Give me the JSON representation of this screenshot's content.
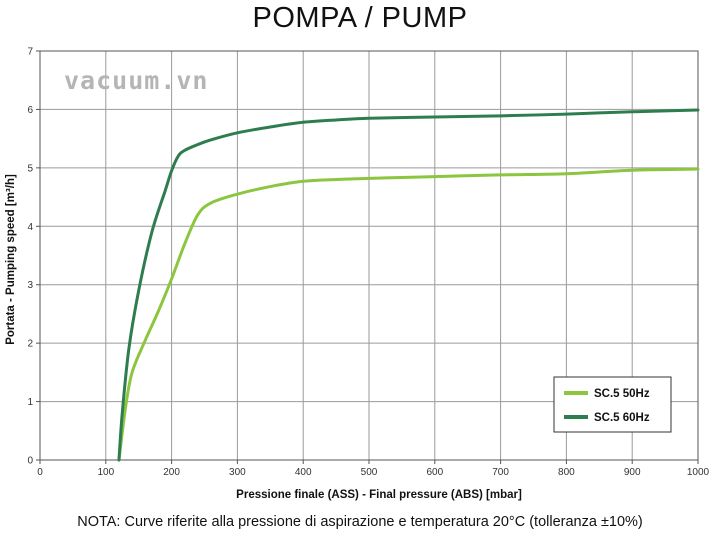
{
  "page": {
    "title": "POMPA / PUMP",
    "watermark": "vacuum.vn",
    "note": "NOTA:  Curve riferite alla pressione di aspirazione e temperatura 20°C (tolleranza ±10%)"
  },
  "chart_data": {
    "type": "line",
    "title": "POMPA / PUMP",
    "xlabel": "Pressione finale (ASS) - Final pressure (ABS) [mbar]",
    "ylabel": "Portata - Pumping speed [m³/h]",
    "xlim": [
      0,
      1000
    ],
    "ylim": [
      0,
      7
    ],
    "xticks": [
      0,
      100,
      200,
      300,
      400,
      500,
      600,
      700,
      800,
      900,
      1000
    ],
    "yticks": [
      0,
      1,
      2,
      3,
      4,
      5,
      6,
      7
    ],
    "grid": true,
    "legend_position": "bottom-right",
    "series": [
      {
        "name": "SC.5 50Hz",
        "color": "#8cc63f",
        "x": [
          120,
          130,
          140,
          160,
          180,
          200,
          220,
          240,
          260,
          300,
          350,
          400,
          450,
          500,
          600,
          700,
          800,
          900,
          1000
        ],
        "y": [
          0,
          0.9,
          1.5,
          2.05,
          2.55,
          3.1,
          3.7,
          4.2,
          4.4,
          4.55,
          4.68,
          4.77,
          4.8,
          4.82,
          4.85,
          4.88,
          4.9,
          4.96,
          4.98
        ]
      },
      {
        "name": "SC.5 60Hz",
        "color": "#2e7d4f",
        "x": [
          120,
          125,
          135,
          150,
          170,
          190,
          200,
          210,
          220,
          240,
          260,
          300,
          350,
          400,
          450,
          500,
          600,
          700,
          800,
          900,
          1000
        ],
        "y": [
          0,
          0.8,
          1.9,
          2.9,
          3.9,
          4.6,
          4.95,
          5.2,
          5.3,
          5.4,
          5.48,
          5.6,
          5.7,
          5.78,
          5.82,
          5.85,
          5.87,
          5.89,
          5.92,
          5.96,
          5.99
        ]
      }
    ]
  }
}
